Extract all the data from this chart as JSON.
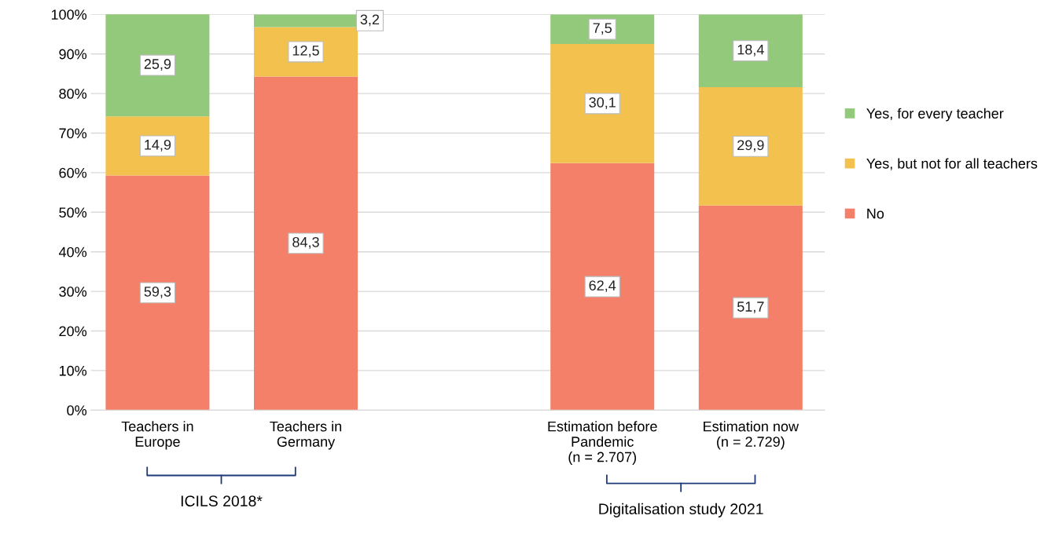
{
  "chart_data": {
    "type": "bar",
    "stacked": true,
    "categories": [
      "Teachers in\nEurope",
      "Teachers in\nGermany",
      null,
      "Estimation before\nPandemic\n(n = 2.707)",
      "Estimation now\n(n = 2.729)"
    ],
    "series": [
      {
        "name": "No",
        "color": "#f4806a",
        "values": [
          59.3,
          84.3,
          null,
          62.4,
          51.7
        ],
        "value_labels": [
          "59,3",
          "84,3",
          null,
          "62,4",
          "51,7"
        ]
      },
      {
        "name": "Yes, but not for all teachers",
        "color": "#f2c14e",
        "values": [
          14.9,
          12.5,
          null,
          30.1,
          29.9
        ],
        "value_labels": [
          "14,9",
          "12,5",
          null,
          "30,1",
          "29,9"
        ]
      },
      {
        "name": "Yes, for every teacher",
        "color": "#93c97a",
        "values": [
          25.9,
          3.2,
          null,
          7.5,
          18.4
        ],
        "value_labels": [
          "25,9",
          "3,2",
          null,
          "7,5",
          "18,4"
        ]
      }
    ],
    "ylim": [
      0,
      100
    ],
    "yticks": [
      {
        "value": 0,
        "label": "0%"
      },
      {
        "value": 10,
        "label": "10%"
      },
      {
        "value": 20,
        "label": "20%"
      },
      {
        "value": 30,
        "label": "30%"
      },
      {
        "value": 40,
        "label": "40%"
      },
      {
        "value": 50,
        "label": "50%"
      },
      {
        "value": 60,
        "label": "60%"
      },
      {
        "value": 70,
        "label": "70%"
      },
      {
        "value": 80,
        "label": "80%"
      },
      {
        "value": 90,
        "label": "90%"
      },
      {
        "value": 100,
        "label": "100%"
      }
    ],
    "grid": "y",
    "legend": "right",
    "annotations": [
      "ICILS 2018*",
      "Digitalisation study 2021"
    ]
  }
}
